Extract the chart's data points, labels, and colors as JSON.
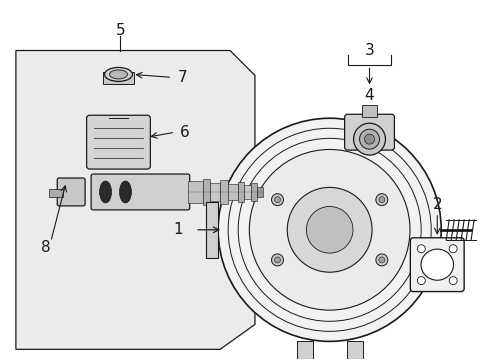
{
  "bg_color": "#ffffff",
  "lc": "#1a1a1a",
  "fill_box": "#ebebeb",
  "figsize": [
    4.89,
    3.6
  ],
  "dpi": 100,
  "font_size": 9
}
